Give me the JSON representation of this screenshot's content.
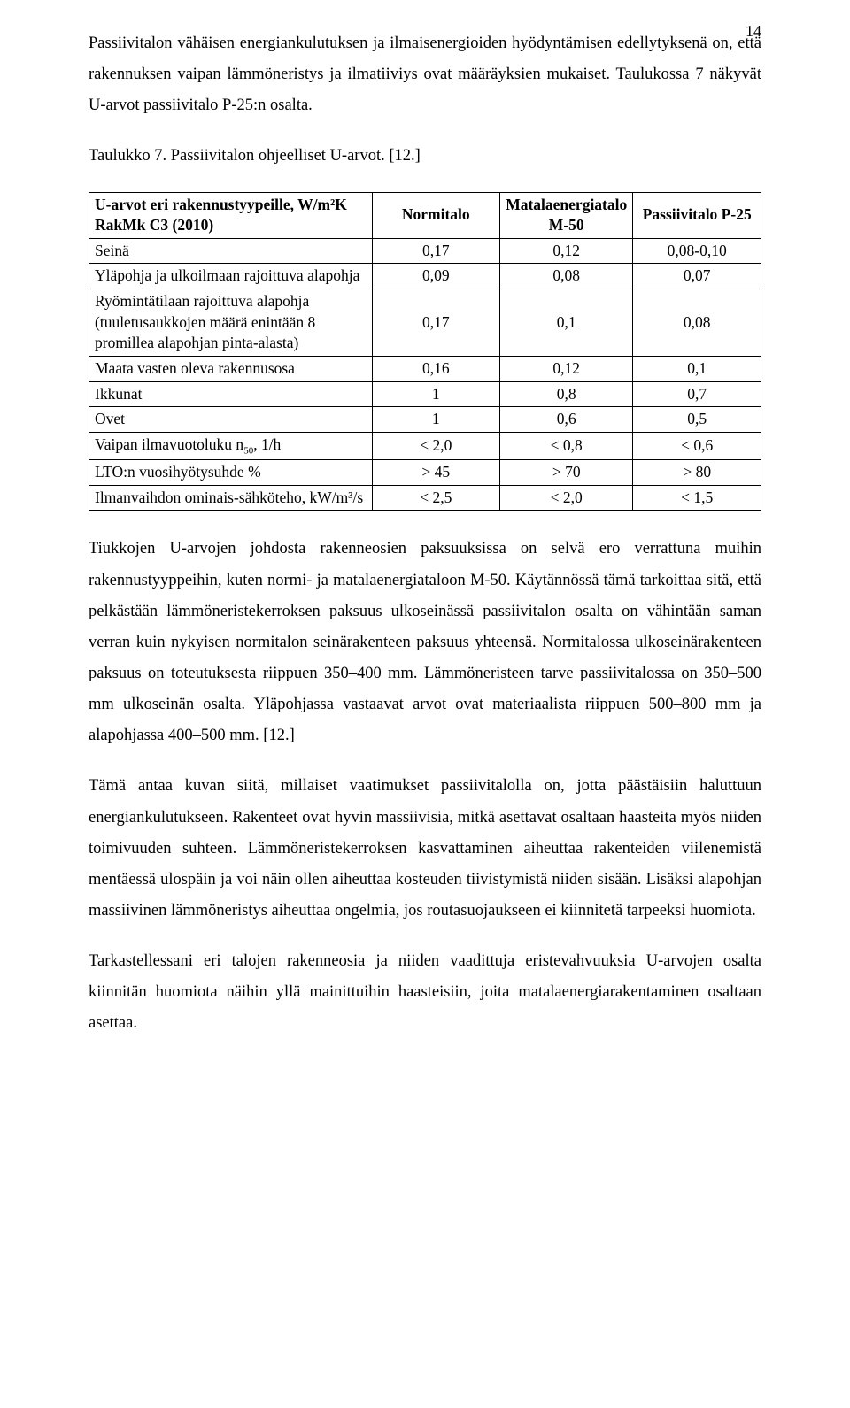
{
  "page_number": "14",
  "para1": "Passiivitalon vähäisen energiankulutuksen ja ilmaisenergioiden hyödyntämisen edellytyksenä on, että rakennuksen vaipan lämmöneristys ja ilmatiiviys ovat määräyksien mukaiset. Taulukossa 7 näkyvät U-arvot passiivitalo P-25:n osalta.",
  "para2": "Taulukko 7. Passiivitalon ohjeelliset U-arvot. [12.]",
  "table": {
    "header_rowkey": "U-arvot eri rakennustyypeille, W/m²K RakMk C3 (2010)",
    "header_cols": [
      "Normitalo",
      "Matalaenergiatalo M-50",
      "Passiivitalo P-25"
    ],
    "rows": [
      {
        "label": "Seinä",
        "vals": [
          "0,17",
          "0,12",
          "0,08-0,10"
        ]
      },
      {
        "label": "Yläpohja ja ulkoilmaan rajoittuva alapohja",
        "vals": [
          "0,09",
          "0,08",
          "0,07"
        ]
      },
      {
        "label": "Ryömintätilaan rajoittuva alapohja (tuuletusaukkojen määrä enintään 8 promillea alapohjan pinta-alasta)",
        "vals": [
          "0,17",
          "0,1",
          "0,08"
        ]
      },
      {
        "label": "Maata vasten oleva rakennusosa",
        "vals": [
          "0,16",
          "0,12",
          "0,1"
        ]
      },
      {
        "label": "Ikkunat",
        "vals": [
          "1",
          "0,8",
          "0,7"
        ]
      },
      {
        "label": "Ovet",
        "vals": [
          "1",
          "0,6",
          "0,5"
        ]
      },
      {
        "label_html": "Vaipan ilmavuotoluku n<span class='sub'>50</span>, 1/h",
        "vals": [
          "< 2,0",
          "< 0,8",
          "< 0,6"
        ]
      },
      {
        "label": "LTO:n vuosihyötysuhde %",
        "vals": [
          "> 45",
          "> 70",
          "> 80"
        ]
      },
      {
        "label": "Ilmanvaihdon ominais-sähköteho, kW/m³/s",
        "vals": [
          "< 2,5",
          "< 2,0",
          "< 1,5"
        ]
      }
    ]
  },
  "para3": "Tiukkojen U-arvojen johdosta rakenneosien paksuuksissa on selvä ero verrattuna muihin rakennustyyppeihin, kuten normi- ja matalaenergiataloon M-50. Käytännössä tämä tarkoittaa sitä, että pelkästään lämmöneristekerroksen paksuus ulkoseinässä passiivitalon osalta on vähintään saman verran kuin nykyisen normitalon seinärakenteen paksuus yhteensä. Normitalossa ulkoseinärakenteen paksuus on toteutuksesta riippuen 350–400 mm. Lämmöneristeen tarve passiivitalossa on 350–500 mm ulkoseinän osalta. Yläpohjassa vastaavat arvot ovat materiaalista riippuen 500–800 mm ja alapohjassa 400–500 mm. [12.]",
  "para4": "Tämä antaa kuvan siitä, millaiset vaatimukset passiivitalolla on, jotta päästäisiin haluttuun energiankulutukseen. Rakenteet ovat hyvin massiivisia, mitkä asettavat osaltaan haasteita myös niiden toimivuuden suhteen. Lämmöneristekerroksen kasvattaminen aiheuttaa rakenteiden viilenemistä mentäessä ulospäin ja voi näin ollen aiheuttaa kosteuden tiivistymistä niiden sisään. Lisäksi alapohjan massiivinen lämmöneristys aiheuttaa ongelmia, jos routasuojaukseen ei kiinnitetä tarpeeksi huomiota.",
  "para5": "Tarkastellessani eri talojen rakenneosia ja niiden vaadittuja eristevahvuuksia U-arvojen osalta kiinnitän huomiota näihin yllä mainittuihin haasteisiin, joita matalaenergiarakentaminen osaltaan asettaa."
}
